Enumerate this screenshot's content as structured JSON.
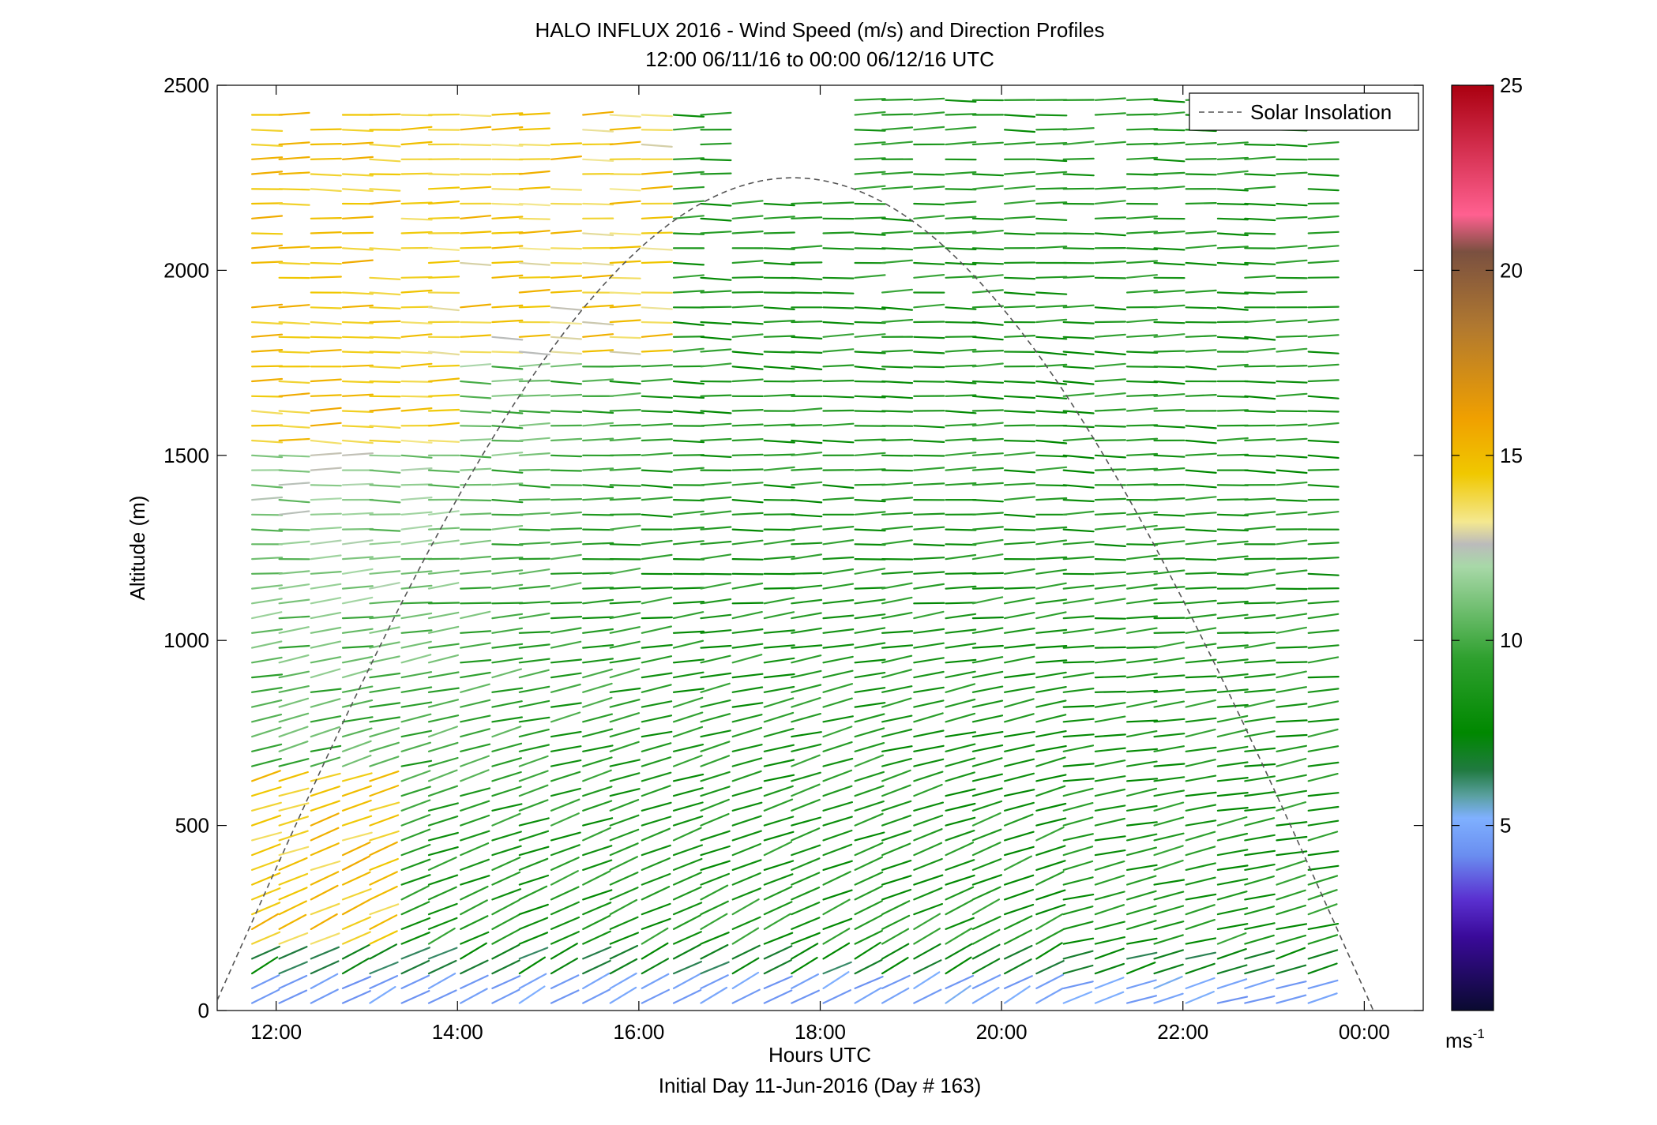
{
  "chart_data": {
    "type": "quiver",
    "title": "HALO INFLUX 2016 - Wind Speed (m/s) and Direction Profiles",
    "subtitle": "12:00 06/11/16 to 00:00 06/12/16  UTC",
    "xlabel": "Hours UTC",
    "xlabel_secondary": "Initial Day 11-Jun-2016 (Day # 163)",
    "ylabel": "Altitude (m)",
    "xlim": [
      11.35,
      24.65
    ],
    "ylim": [
      0,
      2500
    ],
    "x_ticks": [
      {
        "value": 12,
        "label": "12:00"
      },
      {
        "value": 14,
        "label": "14:00"
      },
      {
        "value": 16,
        "label": "16:00"
      },
      {
        "value": 18,
        "label": "18:00"
      },
      {
        "value": 20,
        "label": "20:00"
      },
      {
        "value": 22,
        "label": "22:00"
      },
      {
        "value": 24,
        "label": "00:00"
      }
    ],
    "y_ticks": [
      {
        "value": 0,
        "label": "0"
      },
      {
        "value": 500,
        "label": "500"
      },
      {
        "value": 1000,
        "label": "1000"
      },
      {
        "value": 1500,
        "label": "1500"
      },
      {
        "value": 2000,
        "label": "2000"
      },
      {
        "value": 2500,
        "label": "2500"
      }
    ],
    "legend": {
      "label": "Solar Insolation",
      "position": "top-right",
      "line_style": "dashed",
      "color": "#555555"
    },
    "solar_insolation": {
      "peak_time": 17.7,
      "peak_altitude": 2250,
      "half_width_hours": 6.4
    },
    "colorbar": {
      "label": "ms-1",
      "unit_main": "ms",
      "unit_exp": "-1",
      "range": [
        0,
        25
      ],
      "ticks": [
        {
          "value": 5,
          "label": "5"
        },
        {
          "value": 10,
          "label": "10"
        },
        {
          "value": 15,
          "label": "15"
        },
        {
          "value": 20,
          "label": "20"
        },
        {
          "value": 25,
          "label": "25"
        }
      ],
      "stops": [
        {
          "value": 0,
          "color": "#0a0a30"
        },
        {
          "value": 2,
          "color": "#3a0a9a"
        },
        {
          "value": 3,
          "color": "#5a30d0"
        },
        {
          "value": 4.2,
          "color": "#6a8ef0"
        },
        {
          "value": 5.2,
          "color": "#7fb0ff"
        },
        {
          "value": 5.8,
          "color": "#5aa0a0"
        },
        {
          "value": 6.5,
          "color": "#207a40"
        },
        {
          "value": 7.5,
          "color": "#008800"
        },
        {
          "value": 9.5,
          "color": "#2ea02e"
        },
        {
          "value": 12,
          "color": "#a8d8a8"
        },
        {
          "value": 12.6,
          "color": "#bbbbbb"
        },
        {
          "value": 13.2,
          "color": "#f4e890"
        },
        {
          "value": 14.5,
          "color": "#f0c800"
        },
        {
          "value": 16,
          "color": "#f0a000"
        },
        {
          "value": 18.5,
          "color": "#b07830"
        },
        {
          "value": 20.5,
          "color": "#7a5040"
        },
        {
          "value": 21.5,
          "color": "#ff6090"
        },
        {
          "value": 25,
          "color": "#aa0010"
        }
      ]
    },
    "wind_profiles": {
      "times": [
        11.9,
        12.2,
        12.55,
        12.9,
        13.2,
        13.55,
        13.85,
        14.2,
        14.55,
        14.85,
        15.2,
        15.55,
        15.85,
        16.2,
        16.55,
        16.85,
        17.2,
        17.55,
        17.85,
        18.2,
        18.55,
        18.85,
        19.2,
        19.55,
        19.85,
        20.2,
        20.55,
        20.85,
        21.2,
        21.55,
        21.85,
        22.2,
        22.55,
        22.85,
        23.2,
        23.55
      ],
      "altitude_start": 20,
      "altitude_step": 40,
      "typical_speed_ms": {
        "near_surface": 4.5,
        "boundary_layer": 8,
        "upper_early_afternoon": 14,
        "upper_evening": 8
      },
      "direction_note": "winds turn from ascending (south-westerly) near the surface to near-horizontal aloft"
    }
  }
}
